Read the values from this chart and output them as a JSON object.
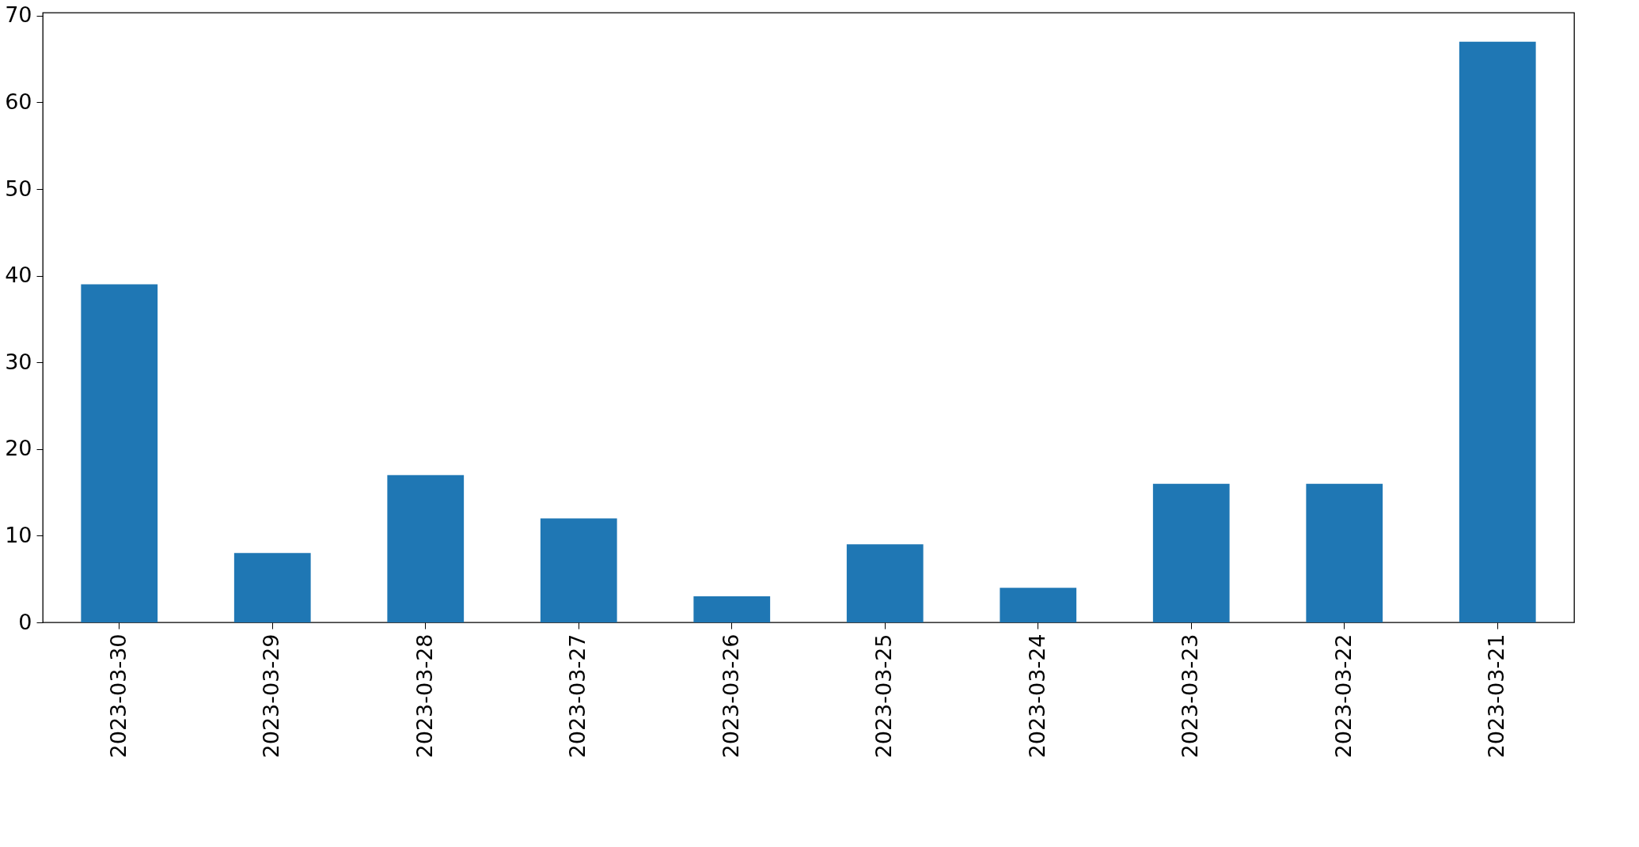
{
  "chart_data": {
    "type": "bar",
    "categories": [
      "2023-03-30",
      "2023-03-29",
      "2023-03-28",
      "2023-03-27",
      "2023-03-26",
      "2023-03-25",
      "2023-03-24",
      "2023-03-23",
      "2023-03-22",
      "2023-03-21"
    ],
    "values": [
      39,
      8,
      17,
      12,
      3,
      9,
      4,
      16,
      16,
      67
    ],
    "color": "#1f77b4",
    "ylim": [
      0,
      70.35
    ],
    "yticks": [
      0,
      10,
      20,
      30,
      40,
      50,
      60,
      70
    ],
    "grid": false
  }
}
